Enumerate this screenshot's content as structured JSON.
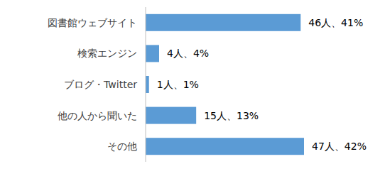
{
  "chart_data": {
    "type": "bar",
    "orientation": "horizontal",
    "categories": [
      "図書館ウェブサイト",
      "検索エンジン",
      "ブログ・Twitter",
      "他の人から聞いた",
      "その他"
    ],
    "values": [
      46,
      4,
      1,
      15,
      47
    ],
    "value_labels": [
      "46人、41%",
      "4人、4%",
      "1人、1%",
      "15人、13%",
      "47人、42%"
    ],
    "color": "#5b9bd5",
    "data_labels": true,
    "tick_labels": "y",
    "grid": false
  }
}
